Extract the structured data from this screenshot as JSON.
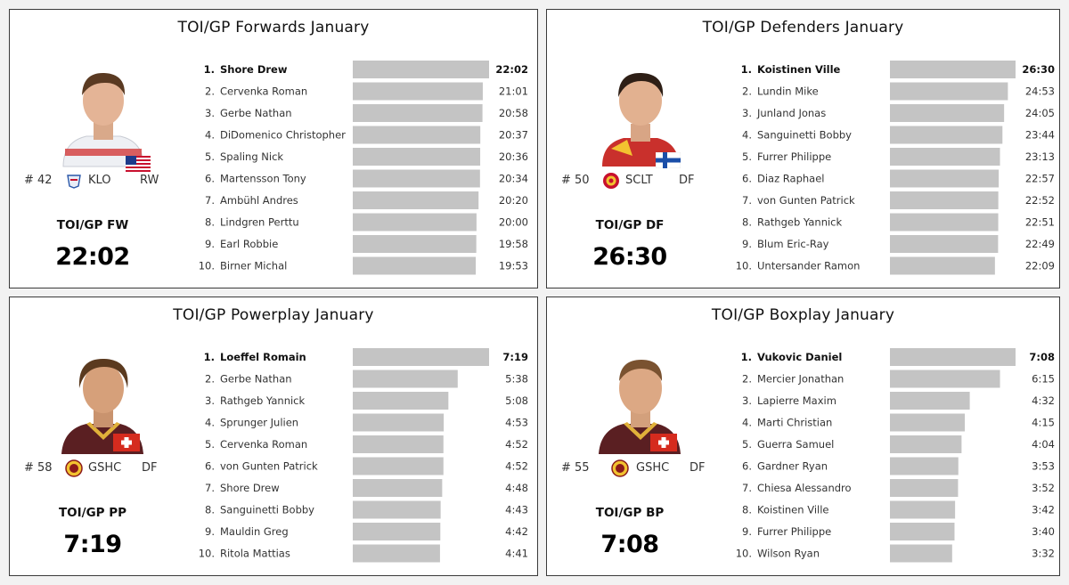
{
  "colors": {
    "bar": "#c4c4c4",
    "panel_border": "#3a3a3a",
    "background": "#f2f2f2"
  },
  "chart_data": [
    {
      "type": "bar",
      "title": "TOI/GP Forwards January",
      "player": {
        "number": "# 42",
        "team": "KLO",
        "position": "RW",
        "flag": "usa-flag-icon"
      },
      "stat_label": "TOI/GP FW",
      "stat_value": "22:02",
      "ranks": [
        "1.",
        "2.",
        "3.",
        "4.",
        "5.",
        "6.",
        "7.",
        "8.",
        "9.",
        "10."
      ],
      "categories": [
        "Shore Drew",
        "Cervenka Roman",
        "Gerbe Nathan",
        "DiDomenico Christopher",
        "Spaling Nick",
        "Martensson Tony",
        "Ambühl Andres",
        "Lindgren Perttu",
        "Earl Robbie",
        "Birner Michal"
      ],
      "labels": [
        "22:02",
        "21:01",
        "20:58",
        "20:37",
        "20:36",
        "20:34",
        "20:20",
        "20:00",
        "19:58",
        "19:53"
      ],
      "values": [
        22.033,
        21.017,
        20.967,
        20.617,
        20.6,
        20.567,
        20.333,
        20.0,
        19.967,
        19.883
      ]
    },
    {
      "type": "bar",
      "title": "TOI/GP Defenders January",
      "player": {
        "number": "# 50",
        "team": "SCLT",
        "position": "DF",
        "flag": "finland-flag-icon"
      },
      "stat_label": "TOI/GP DF",
      "stat_value": "26:30",
      "ranks": [
        "1.",
        "2.",
        "3.",
        "4.",
        "5.",
        "6.",
        "7.",
        "8.",
        "9.",
        "10."
      ],
      "categories": [
        "Koistinen Ville",
        "Lundin Mike",
        "Junland Jonas",
        "Sanguinetti Bobby",
        "Furrer Philippe",
        "Diaz Raphael",
        "von Gunten Patrick",
        "Rathgeb Yannick",
        "Blum Eric-Ray",
        "Untersander Ramon"
      ],
      "labels": [
        "26:30",
        "24:53",
        "24:05",
        "23:44",
        "23:13",
        "22:57",
        "22:52",
        "22:51",
        "22:49",
        "22:09"
      ],
      "values": [
        26.5,
        24.883,
        24.083,
        23.733,
        23.217,
        22.95,
        22.867,
        22.85,
        22.817,
        22.15
      ]
    },
    {
      "type": "bar",
      "title": "TOI/GP Powerplay January",
      "player": {
        "number": "# 58",
        "team": "GSHC",
        "position": "DF",
        "flag": "swiss-flag-icon"
      },
      "stat_label": "TOI/GP PP",
      "stat_value": "7:19",
      "ranks": [
        "1.",
        "2.",
        "3.",
        "4.",
        "5.",
        "6.",
        "7.",
        "8.",
        "9.",
        "10."
      ],
      "categories": [
        "Loeffel Romain",
        "Gerbe Nathan",
        "Rathgeb Yannick",
        "Sprunger Julien",
        "Cervenka Roman",
        "von Gunten Patrick",
        "Shore Drew",
        "Sanguinetti Bobby",
        "Mauldin Greg",
        "Ritola Mattias"
      ],
      "labels": [
        "7:19",
        "5:38",
        "5:08",
        "4:53",
        "4:52",
        "4:52",
        "4:48",
        "4:43",
        "4:42",
        "4:41"
      ],
      "values": [
        7.317,
        5.633,
        5.133,
        4.883,
        4.867,
        4.867,
        4.8,
        4.717,
        4.7,
        4.683
      ]
    },
    {
      "type": "bar",
      "title": "TOI/GP Boxplay January",
      "player": {
        "number": "# 55",
        "team": "GSHC",
        "position": "DF",
        "flag": "swiss-flag-icon"
      },
      "stat_label": "TOI/GP BP",
      "stat_value": "7:08",
      "ranks": [
        "1.",
        "2.",
        "3.",
        "4.",
        "5.",
        "6.",
        "7.",
        "8.",
        "9.",
        "10."
      ],
      "categories": [
        "Vukovic Daniel",
        "Mercier Jonathan",
        "Lapierre Maxim",
        "Marti Christian",
        "Guerra Samuel",
        "Gardner Ryan",
        "Chiesa Alessandro",
        "Koistinen Ville",
        "Furrer Philippe",
        "Wilson Ryan"
      ],
      "labels": [
        "7:08",
        "6:15",
        "4:32",
        "4:15",
        "4:04",
        "3:53",
        "3:52",
        "3:42",
        "3:40",
        "3:32"
      ],
      "values": [
        7.133,
        6.25,
        4.533,
        4.25,
        4.067,
        3.883,
        3.867,
        3.7,
        3.667,
        3.533
      ]
    }
  ]
}
